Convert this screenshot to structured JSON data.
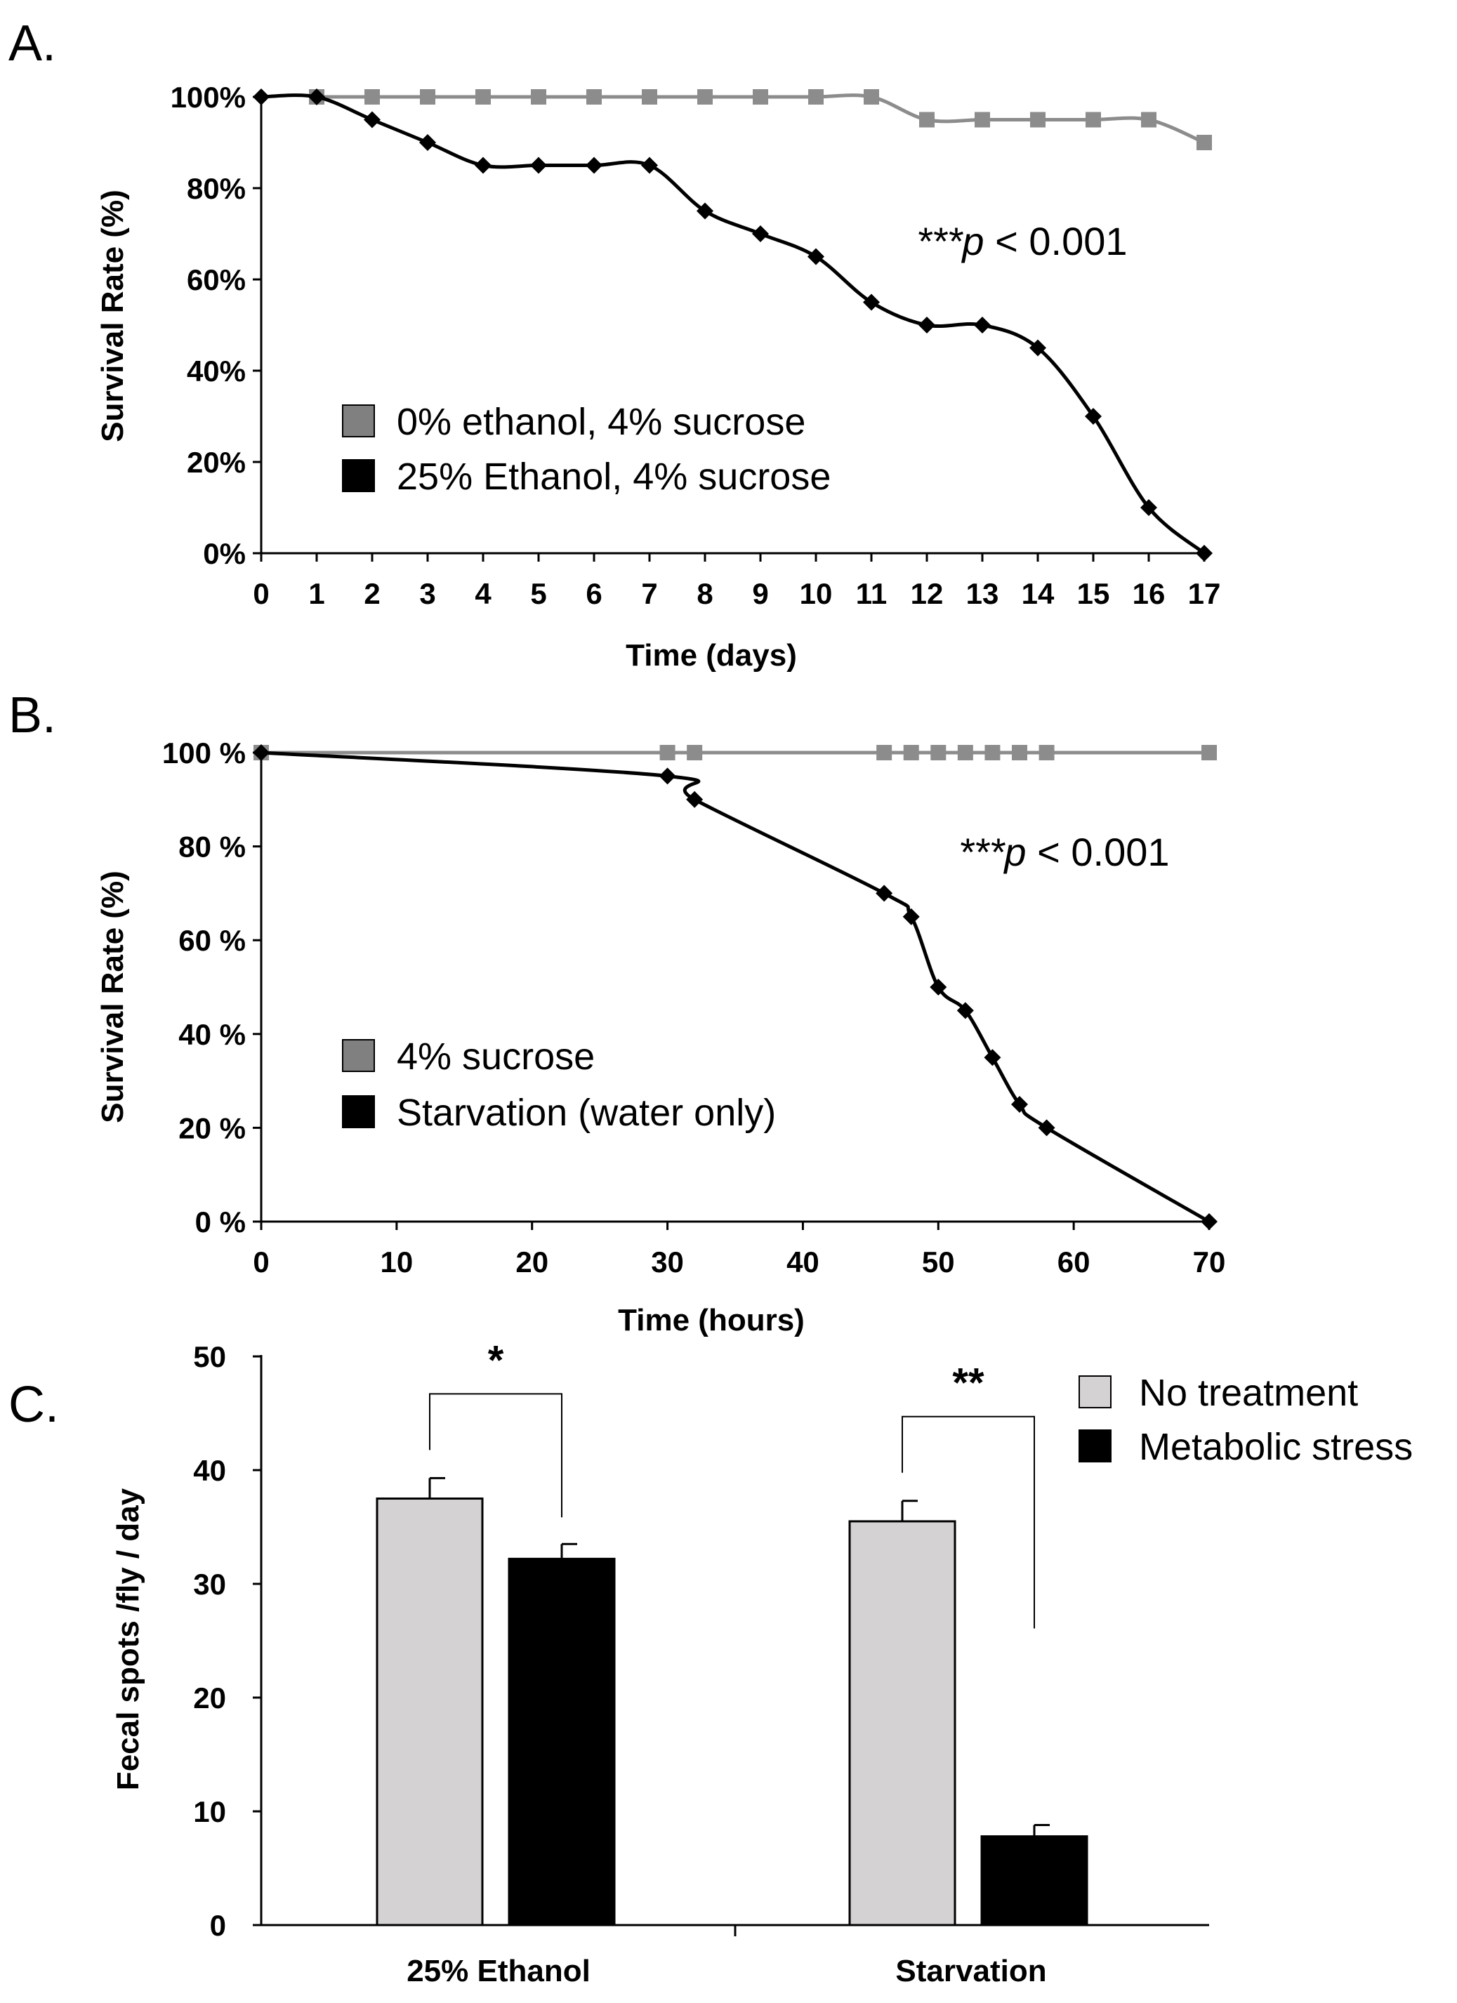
{
  "chart_data": [
    {
      "panel": "A.",
      "type": "line",
      "xlabel": "Time (days)",
      "ylabel": "Survival Rate (%)",
      "xlim": [
        0,
        17
      ],
      "ylim": [
        0,
        100
      ],
      "xticks": [
        "0",
        "1",
        "2",
        "3",
        "4",
        "5",
        "6",
        "7",
        "8",
        "9",
        "10",
        "11",
        "12",
        "13",
        "14",
        "15",
        "16",
        "17"
      ],
      "yticks": [
        "0%",
        "20%",
        "40%",
        "60%",
        "80%",
        "100%"
      ],
      "annotation": {
        "stars": "***",
        "p": "p",
        "rest": " < 0.001"
      },
      "legend_position": "lower-left",
      "series": [
        {
          "name": "0% ethanol, 4% sucrose",
          "color": "#8c8c8c",
          "marker": "square",
          "x": [
            1,
            2,
            3,
            4,
            5,
            6,
            7,
            8,
            9,
            10,
            11,
            12,
            13,
            14,
            15,
            16,
            17
          ],
          "y": [
            100,
            100,
            100,
            100,
            100,
            100,
            100,
            100,
            100,
            100,
            100,
            95,
            95,
            95,
            95,
            95,
            90
          ]
        },
        {
          "name": "25% Ethanol, 4% sucrose",
          "color": "#000000",
          "marker": "diamond",
          "x": [
            0,
            1,
            2,
            3,
            4,
            5,
            6,
            7,
            8,
            9,
            10,
            11,
            12,
            13,
            14,
            15,
            16,
            17
          ],
          "y": [
            100,
            100,
            95,
            90,
            85,
            85,
            85,
            85,
            75,
            70,
            65,
            55,
            50,
            50,
            45,
            30,
            10,
            0
          ]
        }
      ]
    },
    {
      "panel": "B.",
      "type": "line",
      "xlabel": "Time (hours)",
      "ylabel": "Survival Rate (%)",
      "xlim": [
        0,
        70
      ],
      "ylim": [
        0,
        100
      ],
      "xticks": [
        "0",
        "10",
        "20",
        "30",
        "40",
        "50",
        "60",
        "70"
      ],
      "yticks": [
        "0 %",
        "20 %",
        "40 %",
        "60 %",
        "80 %",
        "100 %"
      ],
      "annotation": {
        "stars": "***",
        "p": "p",
        "rest": " < 0.001"
      },
      "legend_position": "lower-left",
      "series": [
        {
          "name": "4% sucrose",
          "color": "#8c8c8c",
          "marker": "square",
          "x": [
            0,
            30,
            32,
            46,
            48,
            50,
            52,
            54,
            56,
            58,
            70
          ],
          "y": [
            100,
            100,
            100,
            100,
            100,
            100,
            100,
            100,
            100,
            100,
            100
          ]
        },
        {
          "name": "Starvation (water only)",
          "color": "#000000",
          "marker": "diamond",
          "x": [
            0,
            30,
            32,
            46,
            48,
            50,
            52,
            54,
            56,
            58,
            70
          ],
          "y": [
            100,
            95,
            90,
            70,
            65,
            50,
            45,
            35,
            25,
            20,
            0
          ]
        }
      ]
    },
    {
      "panel": "C.",
      "type": "bar",
      "ylabel": "Fecal spots /fly / day",
      "ylim": [
        0,
        50
      ],
      "yticks": [
        "0",
        "10",
        "20",
        "30",
        "40",
        "50"
      ],
      "categories": [
        "25% Ethanol",
        "Starvation"
      ],
      "legend_position": "top-right",
      "series": [
        {
          "name": "No treatment",
          "color": "#d4d2d3",
          "values": [
            37.5,
            35.5
          ],
          "errors": [
            1.8,
            1.8
          ]
        },
        {
          "name": "Metabolic stress",
          "color": "#000000",
          "values": [
            32.2,
            7.8
          ],
          "errors": [
            1.3,
            1.0
          ]
        }
      ],
      "significance": [
        "*",
        "**"
      ]
    }
  ]
}
